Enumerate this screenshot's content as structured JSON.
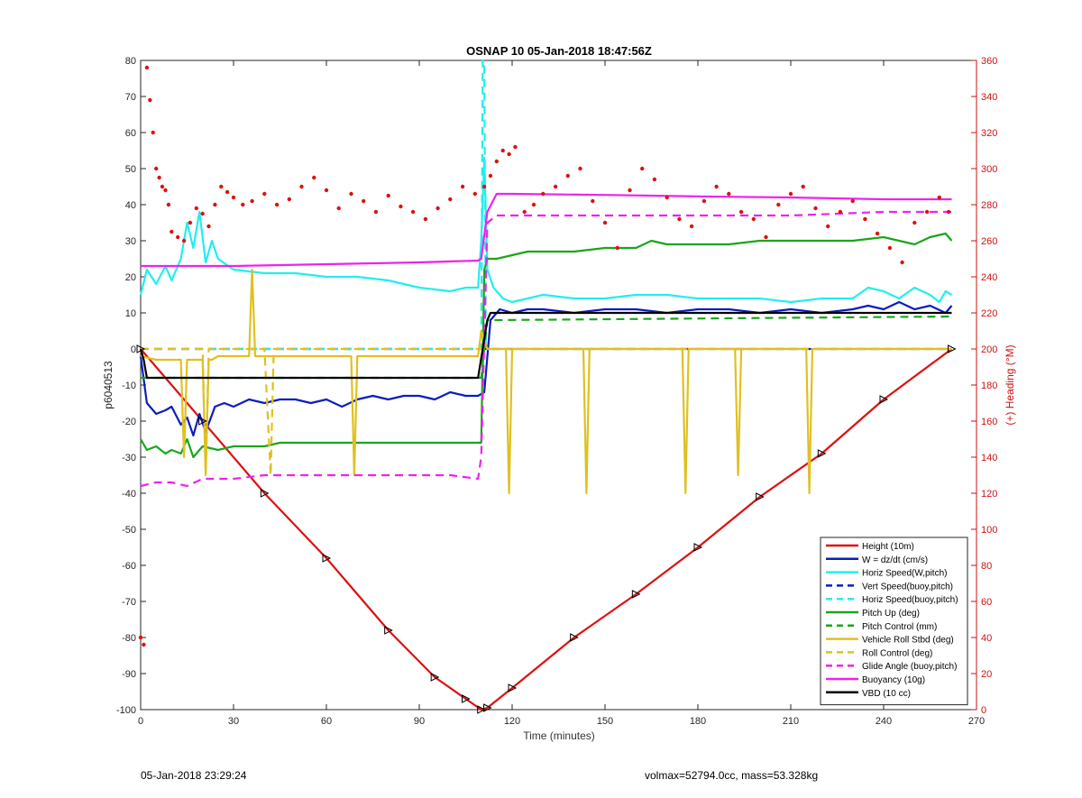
{
  "footer": {
    "timestamp": "05-Jan-2018 23:29:24",
    "info": "volmax=52794.0cc, mass=53.328kg"
  },
  "chart_data": {
    "type": "line",
    "title": "OSNAP 10 05-Jan-2018 18:47:56Z",
    "xlabel": "Time (minutes)",
    "ylabel": "p6040513",
    "y2label": "(+) Heading (°M)",
    "xlim": [
      0,
      270
    ],
    "ylim": [
      -100,
      80
    ],
    "y2lim": [
      0,
      360
    ],
    "xticks": [
      0,
      30,
      60,
      90,
      120,
      150,
      180,
      210,
      240,
      270
    ],
    "yticks": [
      -100,
      -90,
      -80,
      -70,
      -60,
      -50,
      -40,
      -30,
      -20,
      -10,
      0,
      10,
      20,
      30,
      40,
      50,
      60,
      70,
      80
    ],
    "y2ticks": [
      0,
      20,
      40,
      60,
      80,
      100,
      120,
      140,
      160,
      180,
      200,
      220,
      240,
      260,
      280,
      300,
      320,
      340,
      360
    ],
    "grid": false,
    "legend_position": "bottom-right",
    "colors": {
      "red": "#dd1111",
      "blue": "#0a1dbf",
      "cyan": "#22eeee",
      "green": "#1aa61a",
      "yellow": "#e0c020",
      "magenta": "#ee22ee",
      "black": "#000000",
      "right_axis": "#cc1111"
    },
    "series": [
      {
        "name": "Height (10m)",
        "color": "red",
        "dash": false,
        "x": [
          0,
          20,
          40,
          60,
          80,
          95,
          105,
          110,
          112,
          120,
          140,
          160,
          180,
          200,
          220,
          240,
          262
        ],
        "y": [
          0,
          -20,
          -40,
          -58,
          -78,
          -91,
          -97,
          -100,
          -99.5,
          -94,
          -80,
          -68,
          -55,
          -41,
          -29,
          -14,
          0
        ]
      },
      {
        "name": "W = dz/dt (cm/s)",
        "color": "blue",
        "dash": false,
        "x": [
          0,
          2,
          5,
          8,
          10,
          13,
          15,
          17,
          19,
          21,
          24,
          27,
          30,
          35,
          40,
          45,
          50,
          55,
          60,
          65,
          70,
          75,
          80,
          85,
          90,
          95,
          100,
          105,
          109,
          111,
          113,
          116,
          120,
          125,
          130,
          140,
          150,
          160,
          170,
          180,
          190,
          200,
          210,
          220,
          230,
          235,
          240,
          245,
          250,
          255,
          260,
          262
        ],
        "y": [
          -2,
          -15,
          -18,
          -17,
          -16,
          -21,
          -19,
          -24,
          -18,
          -23,
          -16,
          -15,
          -16,
          -14,
          -15,
          -14,
          -14,
          -15,
          -14,
          -16,
          -14,
          -13,
          -14,
          -13,
          -13,
          -14,
          -12,
          -13,
          -13,
          -12,
          8,
          11,
          10,
          11,
          11,
          10,
          11,
          11,
          10,
          11,
          11,
          10,
          11,
          10,
          11,
          12,
          11,
          13,
          11,
          12,
          10,
          12
        ]
      },
      {
        "name": "Horiz Speed(W,pitch)",
        "color": "cyan",
        "dash": false,
        "x": [
          0,
          2,
          5,
          8,
          10,
          13,
          15,
          17,
          19,
          21,
          23,
          25,
          30,
          40,
          50,
          60,
          70,
          80,
          90,
          100,
          105,
          109,
          110,
          111,
          112,
          114,
          117,
          120,
          125,
          130,
          140,
          150,
          160,
          170,
          180,
          190,
          200,
          210,
          220,
          230,
          235,
          240,
          245,
          250,
          255,
          258,
          260,
          262
        ],
        "y": [
          15,
          22,
          18,
          23,
          19,
          25,
          35,
          28,
          38,
          24,
          30,
          25,
          22,
          21,
          21,
          20,
          20,
          19,
          17,
          16,
          17,
          17,
          30,
          53,
          22,
          17,
          14,
          13,
          14,
          15,
          14,
          14,
          15,
          15,
          14,
          14,
          14,
          13,
          14,
          14,
          17,
          16,
          14,
          17,
          15,
          13,
          16,
          15
        ]
      },
      {
        "name": "Vert Speed(buoy,pitch)",
        "color": "blue",
        "dash": true,
        "x": [
          0,
          110,
          112,
          262
        ],
        "y": [
          0,
          0,
          0,
          0
        ]
      },
      {
        "name": "Horiz Speed(buoy,pitch)",
        "color": "cyan",
        "dash": true,
        "x": [
          0,
          110,
          110.5,
          111,
          111.5,
          112,
          262
        ],
        "y": [
          0,
          0,
          80,
          80,
          0,
          0,
          0
        ]
      },
      {
        "name": "Pitch Up (deg)",
        "color": "green",
        "dash": false,
        "x": [
          0,
          2,
          5,
          8,
          10,
          13,
          15,
          17,
          20,
          25,
          30,
          40,
          45,
          50,
          60,
          70,
          80,
          90,
          100,
          105,
          110,
          111,
          112,
          115,
          120,
          125,
          130,
          140,
          150,
          160,
          165,
          170,
          180,
          190,
          200,
          210,
          220,
          230,
          240,
          250,
          255,
          260,
          262
        ],
        "y": [
          -25,
          -28,
          -27,
          -29,
          -28,
          -29,
          -25,
          -30,
          -27,
          -28,
          -27,
          -27,
          -26,
          -26,
          -26,
          -26,
          -26,
          -26,
          -26,
          -26,
          -26,
          22,
          25,
          25,
          26,
          27,
          27,
          27,
          28,
          28,
          30,
          29,
          29,
          29,
          30,
          30,
          30,
          30,
          31,
          29,
          31,
          32,
          30
        ]
      },
      {
        "name": "Pitch Control (mm)",
        "color": "green",
        "dash": true,
        "x": [
          0,
          110,
          112,
          115,
          262
        ],
        "y": [
          -8,
          -8,
          8,
          8,
          9
        ]
      },
      {
        "name": "Vehicle Roll Stbd (deg)",
        "color": "yellow",
        "dash": false,
        "x": [
          0,
          5,
          10,
          13,
          14,
          15,
          16,
          20,
          21,
          22,
          23,
          25,
          30,
          35,
          36,
          37,
          38,
          40,
          45,
          60,
          68,
          69,
          70,
          75,
          90,
          100,
          109,
          110,
          112,
          118,
          119,
          120,
          121,
          125,
          140,
          143,
          144,
          145,
          150,
          170,
          175,
          176,
          177,
          180,
          190,
          192,
          193,
          194,
          200,
          215,
          216,
          217,
          220,
          240,
          245,
          250,
          262
        ],
        "y": [
          -2,
          -3,
          -3,
          -3,
          -30,
          -3,
          -3,
          -3,
          -35,
          -3,
          -3,
          -2,
          -2,
          -2,
          22,
          -2,
          -2,
          -2,
          -2,
          -2,
          -2,
          -35,
          -2,
          -2,
          -2,
          -2,
          -2,
          5,
          0,
          0,
          -40,
          0,
          0,
          0,
          0,
          0,
          -40,
          0,
          0,
          0,
          0,
          -40,
          0,
          0,
          0,
          0,
          -35,
          0,
          0,
          0,
          -40,
          0,
          0,
          0,
          0,
          0,
          0
        ]
      },
      {
        "name": "Roll Control (deg)",
        "color": "yellow",
        "dash": true,
        "x": [
          0,
          20,
          21,
          22,
          40,
          42,
          43,
          110,
          112,
          262
        ],
        "y": [
          0,
          0,
          -35,
          0,
          0,
          -35,
          0,
          0,
          0,
          0
        ]
      },
      {
        "name": "Glide Angle (buoy,pitch)",
        "color": "magenta",
        "dash": true,
        "x": [
          0,
          5,
          10,
          15,
          20,
          25,
          30,
          40,
          50,
          60,
          70,
          80,
          90,
          100,
          109,
          110,
          112,
          115,
          120,
          150,
          180,
          210,
          240,
          262
        ],
        "y": [
          -38,
          -37,
          -37,
          -38,
          -36,
          -36,
          -36,
          -35,
          -35,
          -35,
          -35,
          -35,
          -35,
          -35,
          -36,
          -30,
          35,
          37,
          37,
          37,
          37,
          37,
          38,
          38
        ]
      },
      {
        "name": "Buoyancy (10g)",
        "color": "magenta",
        "dash": false,
        "x": [
          0,
          30,
          60,
          90,
          109,
          110,
          112,
          115,
          120,
          150,
          180,
          210,
          240,
          262
        ],
        "y": [
          23,
          23,
          23.5,
          24,
          24.5,
          25,
          38,
          43,
          43,
          42.7,
          42.3,
          42,
          41.5,
          41.5
        ]
      },
      {
        "name": "VBD (10 cc)",
        "color": "black",
        "dash": false,
        "x": [
          0,
          1,
          2,
          108,
          109,
          112,
          113,
          262
        ],
        "y": [
          0,
          -3,
          -8,
          -8,
          -8,
          8,
          10,
          10
        ]
      }
    ],
    "heading_points": {
      "name": "(+) Heading (°M)",
      "color": "red",
      "axis": "right",
      "x": [
        0,
        1,
        2,
        3,
        4,
        5,
        6,
        7,
        8,
        9,
        10,
        12,
        14,
        16,
        18,
        20,
        22,
        24,
        26,
        28,
        30,
        33,
        36,
        40,
        44,
        48,
        52,
        56,
        60,
        64,
        68,
        72,
        76,
        80,
        84,
        88,
        92,
        96,
        100,
        104,
        108,
        111,
        113,
        115,
        117,
        119,
        121,
        124,
        127,
        130,
        134,
        138,
        142,
        146,
        150,
        154,
        158,
        162,
        166,
        170,
        174,
        178,
        182,
        186,
        190,
        194,
        198,
        202,
        206,
        210,
        214,
        218,
        222,
        226,
        230,
        234,
        238,
        242,
        246,
        250,
        254,
        258,
        261
      ],
      "y": [
        40,
        36,
        356,
        338,
        320,
        300,
        295,
        290,
        288,
        280,
        265,
        262,
        260,
        270,
        278,
        275,
        268,
        280,
        290,
        287,
        284,
        280,
        282,
        286,
        280,
        283,
        290,
        295,
        288,
        278,
        286,
        282,
        276,
        285,
        279,
        276,
        272,
        278,
        283,
        290,
        286,
        290,
        296,
        304,
        310,
        308,
        312,
        276,
        280,
        286,
        290,
        296,
        300,
        282,
        270,
        256,
        288,
        300,
        294,
        284,
        272,
        268,
        282,
        290,
        286,
        276,
        272,
        262,
        280,
        286,
        290,
        278,
        268,
        276,
        282,
        272,
        264,
        256,
        248,
        270,
        276,
        284,
        276
      ]
    }
  }
}
